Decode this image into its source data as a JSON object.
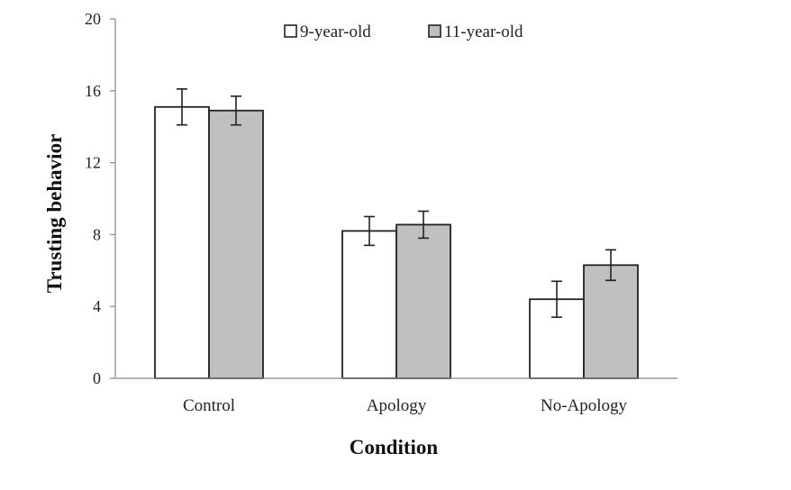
{
  "chart_data": {
    "type": "bar",
    "categories": [
      "Control",
      "Apology",
      "No-Apology"
    ],
    "series": [
      {
        "name": "9-year-old",
        "values": [
          15.1,
          8.2,
          4.4
        ],
        "error": [
          1.0,
          0.8,
          1.0
        ],
        "color": "#ffffff"
      },
      {
        "name": "11-year-old",
        "values": [
          14.9,
          8.55,
          6.3
        ],
        "error": [
          0.8,
          0.75,
          0.85
        ],
        "color": "#c0c0c0"
      }
    ],
    "xlabel": "Condition",
    "ylabel": "Trusting behavior",
    "ylim": [
      0,
      20
    ],
    "yticks": [
      0,
      4,
      8,
      12,
      16,
      20
    ],
    "grid": false,
    "legend_position": "top"
  }
}
